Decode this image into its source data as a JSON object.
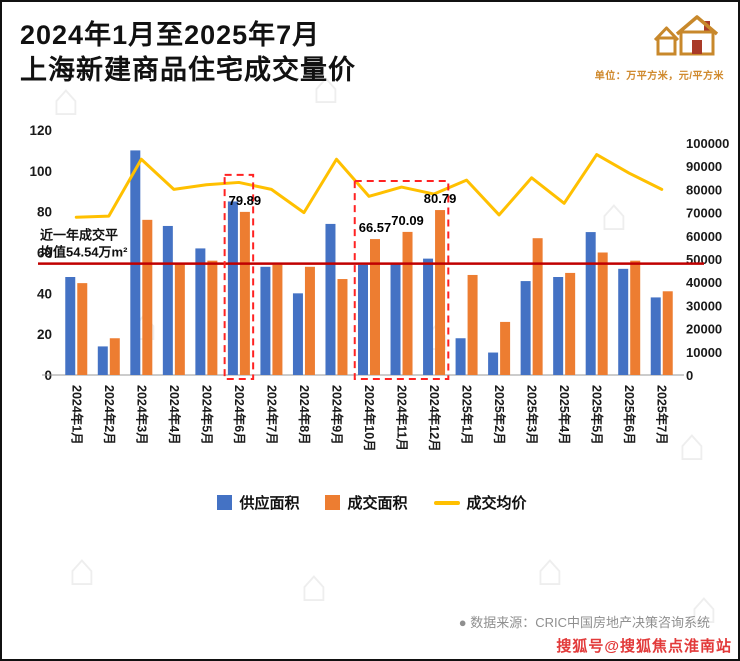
{
  "title": {
    "line1": "2024年1月至2025年7月",
    "line2": "上海新建商品住宅成交量价"
  },
  "unit_label": "单位：万平方米，元/平方米",
  "chart_data": {
    "type": "bar+line",
    "categories": [
      "2024年1月",
      "2024年2月",
      "2024年3月",
      "2024年4月",
      "2024年5月",
      "2024年6月",
      "2024年7月",
      "2024年8月",
      "2024年9月",
      "2024年10月",
      "2024年11月",
      "2024年12月",
      "2025年1月",
      "2025年2月",
      "2025年3月",
      "2025年4月",
      "2025年5月",
      "2025年6月",
      "2025年7月"
    ],
    "series": [
      {
        "key": "supply_area",
        "name": "供应面积",
        "type": "bar",
        "axis": "left",
        "color": "#4472C4",
        "values": [
          48,
          14,
          110,
          73,
          62,
          85,
          53,
          40,
          74,
          54,
          55,
          57,
          18,
          11,
          46,
          48,
          70,
          52,
          38
        ]
      },
      {
        "key": "deal_area",
        "name": "成交面积",
        "type": "bar",
        "axis": "left",
        "color": "#ED7D31",
        "values": [
          45,
          18,
          76,
          55,
          56,
          79.89,
          54,
          53,
          47,
          66.57,
          70.09,
          80.79,
          49,
          26,
          67,
          50,
          60,
          56,
          41
        ],
        "labels": {
          "5": "79.89",
          "9": "66.57",
          "10": "70.09",
          "11": "80.79"
        }
      },
      {
        "key": "avg_price",
        "name": "成交均价",
        "type": "line",
        "axis": "right",
        "color": "#FFC000",
        "values": [
          68000,
          68500,
          93000,
          80000,
          82000,
          83000,
          80000,
          70000,
          93000,
          77000,
          81000,
          78000,
          84000,
          69000,
          85000,
          74000,
          95000,
          87000,
          80000
        ]
      }
    ],
    "left_axis": {
      "min": 0,
      "max": 120,
      "ticks": [
        0,
        20,
        40,
        60,
        80,
        100,
        120
      ]
    },
    "right_axis": {
      "min": 0,
      "max": 100000,
      "ticks": [
        0,
        10000,
        20000,
        30000,
        40000,
        50000,
        60000,
        70000,
        80000,
        90000,
        100000
      ]
    },
    "average_line": {
      "value": 54.54,
      "color": "#C00000",
      "label_line1": "近一年成交平",
      "label_line2": "均值54.54万m²"
    },
    "highlight_boxes": [
      {
        "start": 5,
        "end": 5,
        "top_value": 98
      },
      {
        "start": 9,
        "end": 11,
        "top_value": 95
      }
    ],
    "grid": "off",
    "legend_position": "bottom"
  },
  "footer": {
    "bullet": "●",
    "source": "数据来源：CRIC中国房地产决策咨询系统"
  },
  "watermark_text": "搜狐号@搜狐焦点淮南站"
}
